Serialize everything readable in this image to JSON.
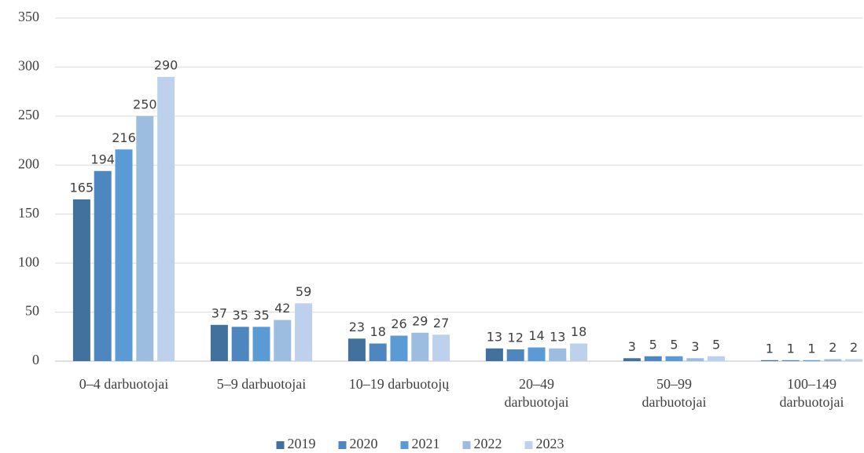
{
  "chart_data": {
    "type": "bar",
    "categories": [
      "0–4 darbuotojai",
      "5–9 darbuotojai",
      "10–19 darbuotojų",
      "20–49\ndarbuotojai",
      "50–99\ndarbuotojai",
      "100–149\ndarbuotojai"
    ],
    "series": [
      {
        "name": "2019",
        "color": "#41719c",
        "values": [
          165,
          37,
          23,
          13,
          3,
          1
        ]
      },
      {
        "name": "2020",
        "color": "#4e87c0",
        "values": [
          194,
          35,
          18,
          12,
          5,
          1
        ]
      },
      {
        "name": "2021",
        "color": "#5b9bd5",
        "values": [
          216,
          35,
          26,
          14,
          5,
          1
        ]
      },
      {
        "name": "2022",
        "color": "#9dbde0",
        "values": [
          250,
          42,
          29,
          13,
          3,
          2
        ]
      },
      {
        "name": "2023",
        "color": "#bdd1ec",
        "values": [
          290,
          59,
          27,
          18,
          5,
          2
        ]
      }
    ],
    "ylim": [
      0,
      350
    ],
    "yticks": [
      0,
      50,
      100,
      150,
      200,
      250,
      300,
      350
    ],
    "grid": true,
    "legend": "bottom"
  }
}
